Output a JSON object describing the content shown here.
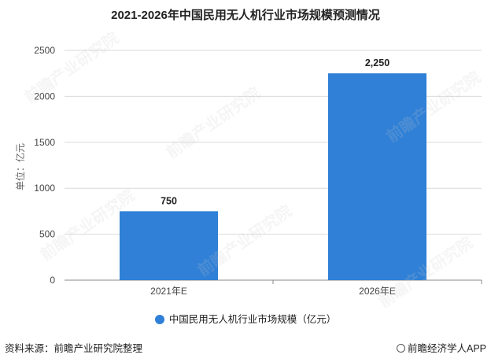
{
  "colors": {
    "bar": "#2f80d6",
    "grid": "#d9d9d9",
    "axis": "#888888",
    "text": "#222222"
  },
  "chart_data": {
    "type": "bar",
    "title": "2021-2026年中国民用无人机行业市场规模预测情况",
    "ylabel": "单位：亿元",
    "xlabel": "",
    "categories": [
      "2021年E",
      "2026年E"
    ],
    "series": [
      {
        "name": "中国民用无人机行业市场规模（亿元）",
        "values": [
          750,
          2250
        ],
        "labels": [
          "750",
          "2,250"
        ]
      }
    ],
    "ylim": [
      0,
      2500
    ],
    "yticks": [
      "0",
      "500",
      "1000",
      "1500",
      "2000",
      "2500"
    ],
    "grid": true,
    "legend": "bottom"
  },
  "footer": {
    "source": "资料来源：前瞻产业研究院整理",
    "publisher": "前瞻经济学人APP"
  },
  "watermark": {
    "text": "前瞻产业研究院"
  }
}
